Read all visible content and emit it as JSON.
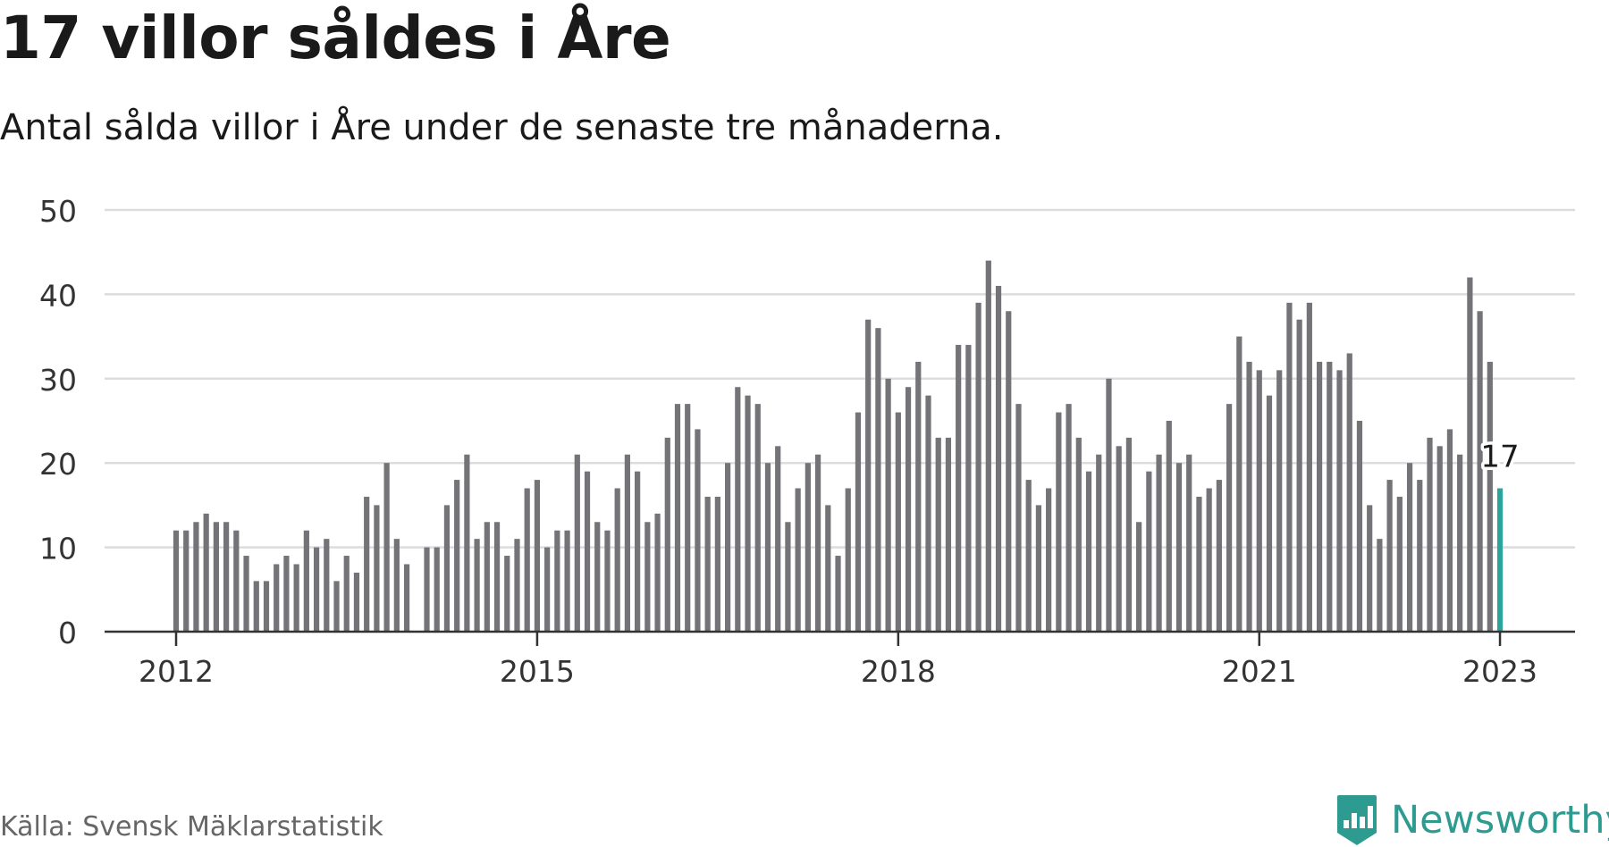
{
  "header": {
    "title": "17 villor såldes i Åre",
    "subtitle": "Antal sålda villor i Åre under de senaste tre månaderna."
  },
  "footer": {
    "source": "Källa: Svensk Mäklarstatistik",
    "brand": "Newsworthy"
  },
  "colors": {
    "bar": "#737378",
    "highlight": "#2ea39b",
    "grid": "#dcdcdc",
    "axis": "#333333",
    "brand": "#2e9b91"
  },
  "chart_data": {
    "type": "bar",
    "x_start": "2012-01",
    "x_end": "2023-03",
    "x_ticks": [
      "2012",
      "2015",
      "2018",
      "2021",
      "2023"
    ],
    "y_ticks": [
      0,
      10,
      20,
      30,
      40,
      50
    ],
    "ylim": [
      0,
      50
    ],
    "grid": true,
    "highlight_label": "17",
    "values": [
      12,
      12,
      13,
      14,
      13,
      13,
      12,
      9,
      6,
      6,
      8,
      9,
      8,
      12,
      10,
      11,
      6,
      9,
      7,
      16,
      15,
      20,
      11,
      8,
      null,
      10,
      10,
      15,
      18,
      21,
      11,
      13,
      13,
      9,
      11,
      17,
      18,
      10,
      12,
      12,
      21,
      19,
      13,
      12,
      17,
      21,
      19,
      13,
      14,
      23,
      27,
      27,
      24,
      16,
      16,
      20,
      29,
      28,
      27,
      20,
      22,
      13,
      17,
      20,
      21,
      15,
      9,
      17,
      26,
      37,
      36,
      30,
      26,
      29,
      32,
      28,
      23,
      23,
      34,
      34,
      39,
      44,
      41,
      38,
      27,
      18,
      15,
      17,
      26,
      27,
      23,
      19,
      21,
      30,
      22,
      23,
      13,
      19,
      21,
      25,
      20,
      21,
      16,
      17,
      18,
      27,
      35,
      32,
      31,
      28,
      31,
      39,
      37,
      39,
      32,
      32,
      31,
      33,
      25,
      15,
      11,
      18,
      16,
      20,
      18,
      23,
      22,
      24,
      21,
      42,
      38,
      32,
      17
    ]
  }
}
